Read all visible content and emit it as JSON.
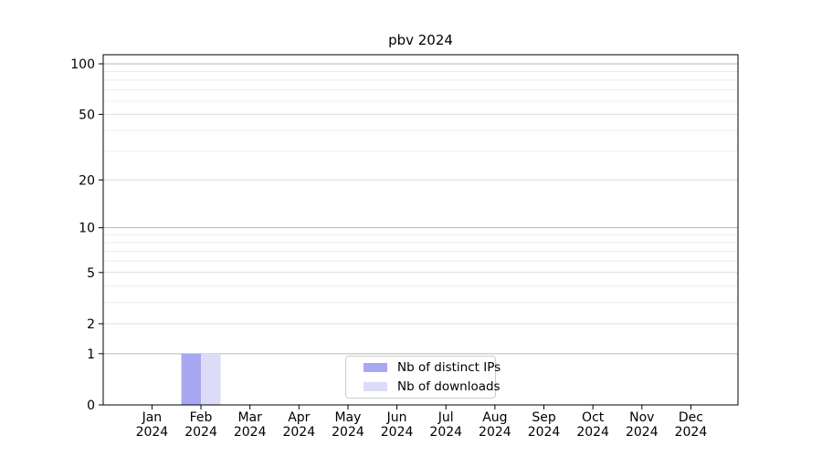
{
  "chart_data": {
    "type": "bar",
    "title": "pbv 2024",
    "months": [
      "Jan",
      "Feb",
      "Mar",
      "Apr",
      "May",
      "Jun",
      "Jul",
      "Aug",
      "Sep",
      "Oct",
      "Nov",
      "Dec"
    ],
    "year": "2024",
    "series": [
      {
        "name": "Nb of distinct IPs",
        "color": "#a8a8f2",
        "values": [
          0,
          1,
          0,
          0,
          0,
          0,
          0,
          0,
          0,
          0,
          0,
          0
        ]
      },
      {
        "name": "Nb of downloads",
        "color": "#dcdcf8",
        "values": [
          0,
          1,
          0,
          0,
          0,
          0,
          0,
          0,
          0,
          0,
          0,
          0
        ]
      }
    ],
    "y_axis": {
      "scale": "log10(1+value)",
      "labeled_ticks": [
        0,
        1,
        2,
        5,
        10,
        20,
        50,
        100
      ],
      "decade_ticks": [
        1,
        10,
        100
      ],
      "minor_ticks": [
        3,
        4,
        6,
        7,
        8,
        9,
        30,
        40,
        60,
        70,
        80,
        90
      ],
      "ylim": [
        0,
        113
      ]
    },
    "legend": {
      "position": "lower center"
    },
    "grid": true,
    "colors": {
      "grid_decade": "#b6b6b6",
      "grid_labeled": "#dcdcdc",
      "grid_minor": "#ededed",
      "spine": "#000000",
      "text": "#000000",
      "background": "#ffffff"
    }
  }
}
